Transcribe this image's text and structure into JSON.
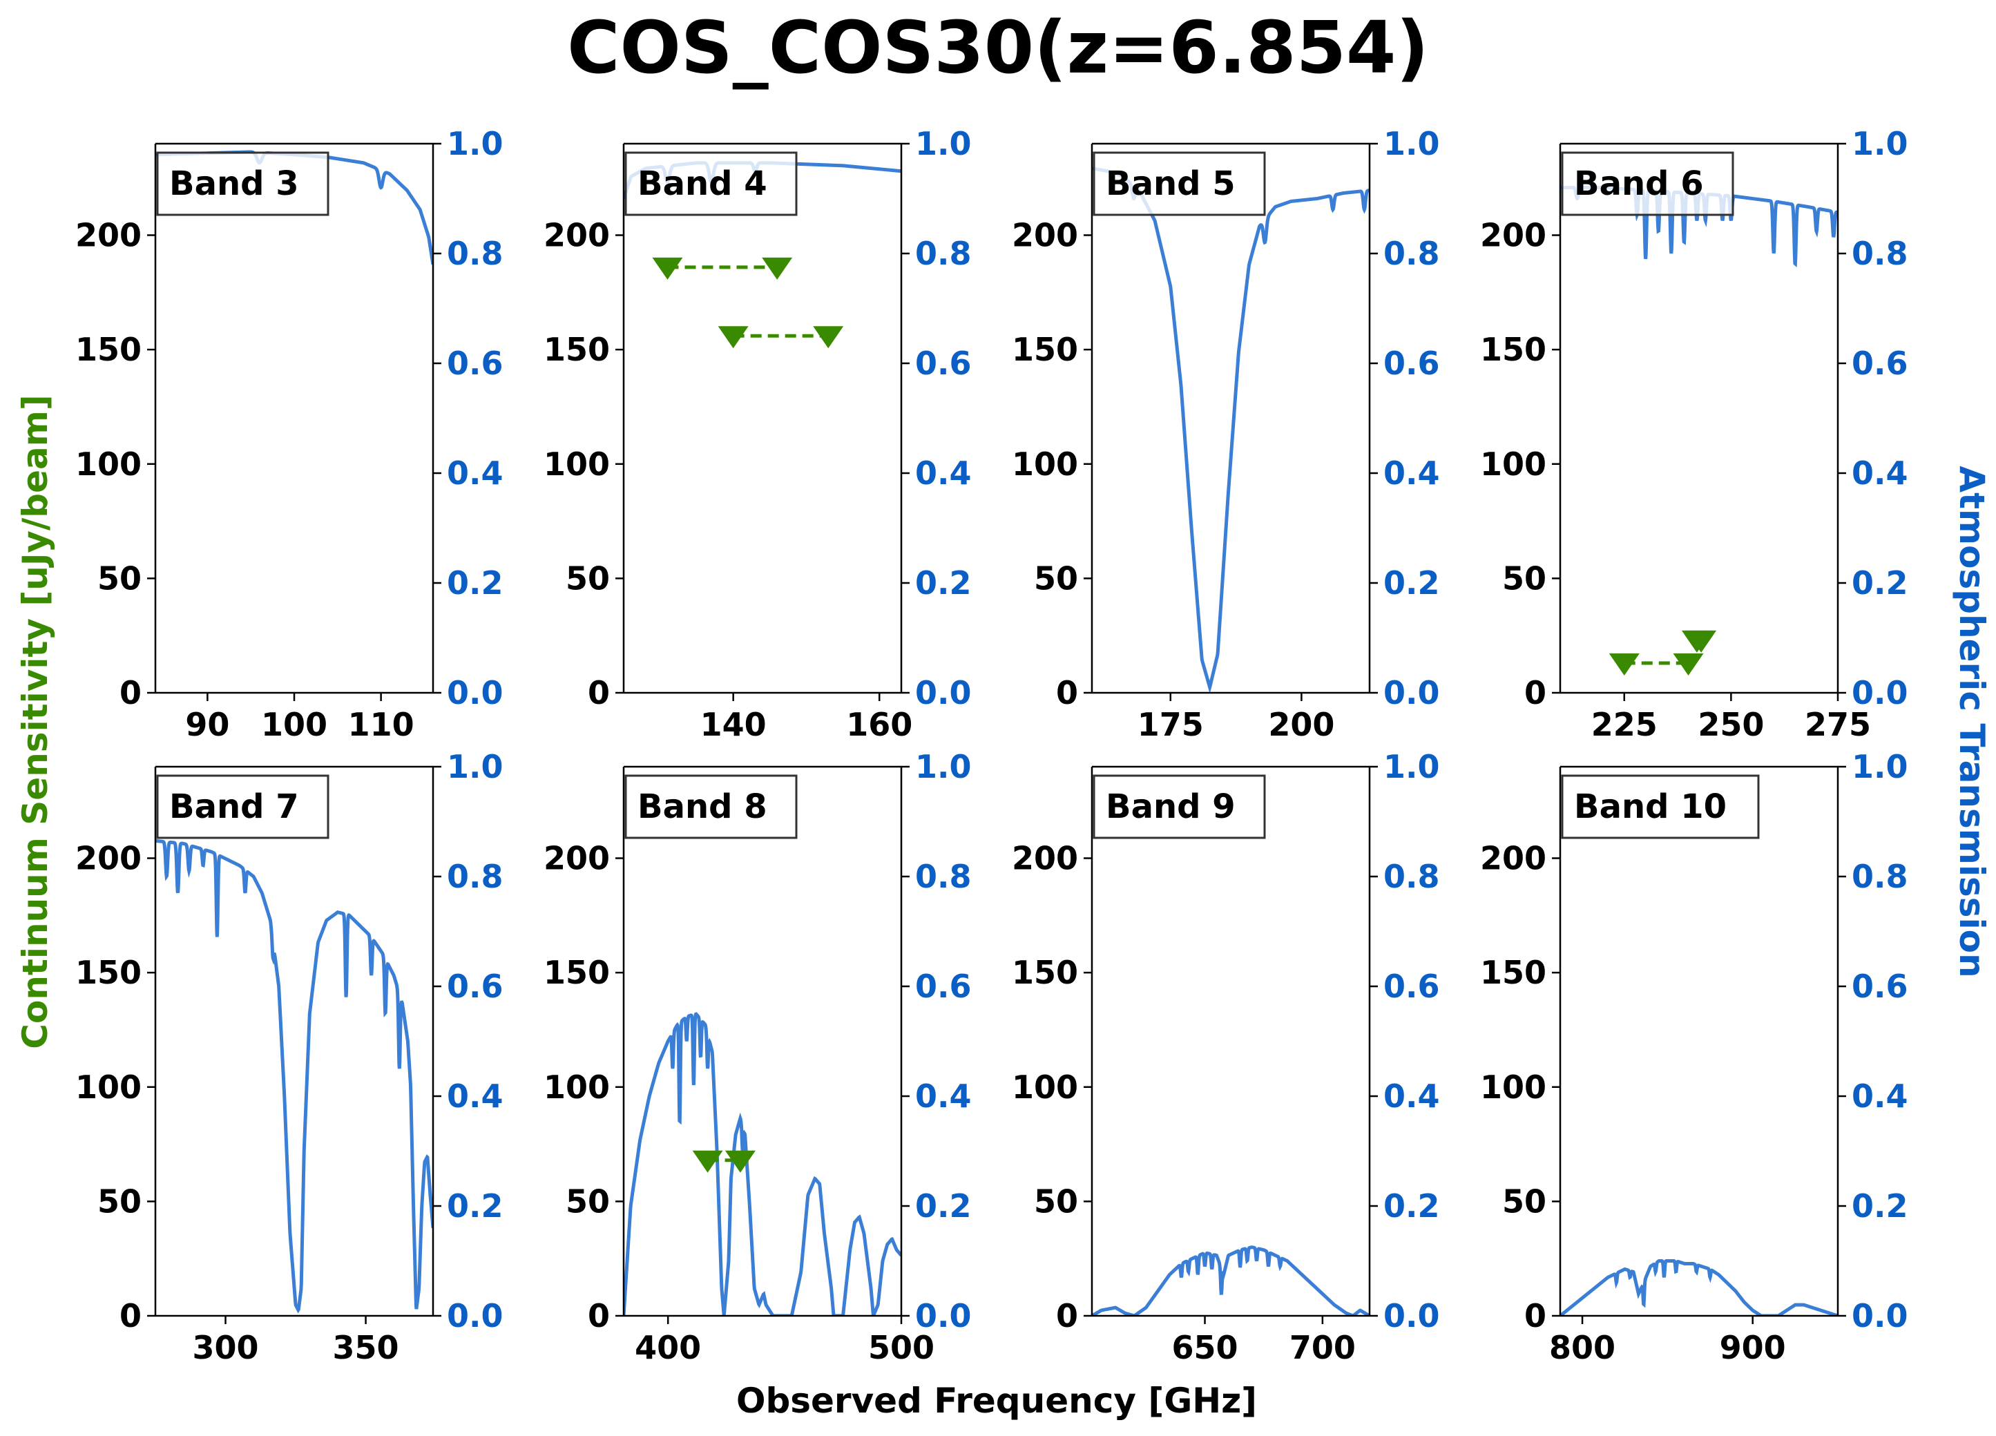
{
  "colors": {
    "sensitivity": "#3a8a00",
    "transmission_line": "#3a7fd5",
    "transmission_axis": "#0a5ec4",
    "text": "#000000"
  },
  "chart_data": {
    "type": "line",
    "title": "COS_COS30(z=6.854)",
    "xlabel": "Observed Frequency [GHz]",
    "ylabel_left": "Continuum Sensitivity [uJy/beam]",
    "ylabel_right": "Atmospheric Transmission",
    "left_ylim": [
      0,
      240
    ],
    "left_yticks": [
      0,
      50,
      100,
      150,
      200
    ],
    "right_ylim": [
      0,
      1.0
    ],
    "right_yticks": [
      "0.0",
      "0.2",
      "0.4",
      "0.6",
      "0.8",
      "1.0"
    ],
    "panels": [
      {
        "band": "Band 3",
        "xlim": [
          84,
          116
        ],
        "xticks": [
          90,
          100,
          110
        ],
        "transmission": [
          [
            84,
            0.98
          ],
          [
            95,
            0.985
          ],
          [
            100,
            0.98
          ],
          [
            104,
            0.975
          ],
          [
            108,
            0.965
          ],
          [
            111,
            0.945
          ],
          [
            113,
            0.915
          ],
          [
            114.5,
            0.88
          ],
          [
            115.5,
            0.83
          ],
          [
            116,
            0.78
          ]
        ],
        "dips": [
          [
            96,
            0.965,
            0.4
          ],
          [
            110,
            0.92,
            0.3
          ]
        ],
        "upper_limits": []
      },
      {
        "band": "Band 4",
        "xlim": [
          125,
          163
        ],
        "xticks": [
          140,
          160
        ],
        "transmission": [
          [
            125,
            0.9
          ],
          [
            126,
            0.94
          ],
          [
            128,
            0.955
          ],
          [
            135,
            0.965
          ],
          [
            145,
            0.965
          ],
          [
            155,
            0.96
          ],
          [
            163,
            0.95
          ]
        ],
        "dips": [
          [
            131,
            0.93,
            0.4
          ],
          [
            137,
            0.93,
            0.4
          ],
          [
            143,
            0.95,
            0.3
          ]
        ],
        "upper_limits": [
          [
            [
              131,
              186
            ],
            [
              146,
              186
            ]
          ],
          [
            [
              140,
              156
            ],
            [
              153,
              156
            ]
          ]
        ]
      },
      {
        "band": "Band 5",
        "xlim": [
          160,
          213
        ],
        "xticks": [
          175,
          200
        ],
        "transmission": [
          [
            160,
            0.955
          ],
          [
            163,
            0.95
          ],
          [
            166,
            0.94
          ],
          [
            169,
            0.915
          ],
          [
            172,
            0.86
          ],
          [
            175,
            0.74
          ],
          [
            177,
            0.56
          ],
          [
            179,
            0.3
          ],
          [
            181,
            0.06
          ],
          [
            182.5,
            0.01
          ],
          [
            184,
            0.07
          ],
          [
            186,
            0.36
          ],
          [
            188,
            0.62
          ],
          [
            190,
            0.78
          ],
          [
            192,
            0.85
          ],
          [
            195,
            0.885
          ],
          [
            198,
            0.895
          ],
          [
            203,
            0.9
          ],
          [
            208,
            0.91
          ],
          [
            213,
            0.915
          ]
        ],
        "dips": [
          [
            168,
            0.9,
            0.4
          ],
          [
            193,
            0.82,
            0.4
          ],
          [
            206,
            0.88,
            0.3
          ],
          [
            212,
            0.88,
            0.3
          ]
        ],
        "upper_limits": []
      },
      {
        "band": "Band 6",
        "xlim": [
          210,
          275
        ],
        "xticks": [
          225,
          250,
          275
        ],
        "transmission": [
          [
            210,
            0.92
          ],
          [
            220,
            0.92
          ],
          [
            230,
            0.915
          ],
          [
            240,
            0.91
          ],
          [
            250,
            0.905
          ],
          [
            260,
            0.895
          ],
          [
            268,
            0.885
          ],
          [
            275,
            0.875
          ]
        ],
        "dips": [
          [
            214,
            0.9,
            0.4
          ],
          [
            228,
            0.87,
            0.3
          ],
          [
            230,
            0.79,
            0.3
          ],
          [
            233,
            0.84,
            0.3
          ],
          [
            236,
            0.8,
            0.3
          ],
          [
            239,
            0.82,
            0.3
          ],
          [
            242,
            0.86,
            0.3
          ],
          [
            244,
            0.86,
            0.3
          ],
          [
            248,
            0.86,
            0.3
          ],
          [
            250,
            0.86,
            0.3
          ],
          [
            260,
            0.8,
            0.3
          ],
          [
            265,
            0.78,
            0.3
          ],
          [
            270,
            0.84,
            0.3
          ],
          [
            274,
            0.83,
            0.3
          ]
        ],
        "upper_limits": [
          [
            [
              225,
              13
            ],
            [
              240,
              13
            ]
          ],
          [
            [
              242,
              23
            ],
            [
              243,
              23
            ]
          ]
        ]
      },
      {
        "band": "Band 7",
        "xlim": [
          275,
          374
        ],
        "xticks": [
          300,
          350
        ],
        "transmission": [
          [
            275,
            0.865
          ],
          [
            285,
            0.86
          ],
          [
            295,
            0.845
          ],
          [
            305,
            0.82
          ],
          [
            310,
            0.8
          ],
          [
            313,
            0.77
          ],
          [
            316,
            0.72
          ],
          [
            319,
            0.6
          ],
          [
            321,
            0.4
          ],
          [
            323,
            0.15
          ],
          [
            325,
            0.02
          ],
          [
            326,
            0.01
          ],
          [
            327,
            0.05
          ],
          [
            328,
            0.3
          ],
          [
            330,
            0.55
          ],
          [
            333,
            0.68
          ],
          [
            336,
            0.72
          ],
          [
            340,
            0.735
          ],
          [
            344,
            0.73
          ],
          [
            348,
            0.71
          ],
          [
            352,
            0.69
          ],
          [
            356,
            0.66
          ],
          [
            360,
            0.62
          ],
          [
            363,
            0.57
          ],
          [
            365,
            0.5
          ],
          [
            366,
            0.42
          ],
          [
            367,
            0.2
          ],
          [
            368,
            0.01
          ],
          [
            369,
            0.05
          ],
          [
            370,
            0.2
          ],
          [
            371,
            0.28
          ],
          [
            372,
            0.29
          ],
          [
            373,
            0.22
          ],
          [
            374,
            0.16
          ]
        ],
        "dips": [
          [
            279,
            0.8,
            0.5
          ],
          [
            283,
            0.77,
            0.5
          ],
          [
            287,
            0.81,
            0.5
          ],
          [
            292,
            0.82,
            0.4
          ],
          [
            297,
            0.69,
            0.4
          ],
          [
            307,
            0.77,
            0.4
          ],
          [
            317,
            0.65,
            0.4
          ],
          [
            343,
            0.58,
            0.4
          ],
          [
            352,
            0.62,
            0.4
          ],
          [
            357,
            0.55,
            0.4
          ],
          [
            362,
            0.45,
            0.4
          ]
        ],
        "upper_limits": []
      },
      {
        "band": "Band 8",
        "xlim": [
          381,
          500
        ],
        "xticks": [
          400,
          500
        ],
        "transmission": [
          [
            381,
            0.0
          ],
          [
            384,
            0.2
          ],
          [
            388,
            0.32
          ],
          [
            392,
            0.4
          ],
          [
            396,
            0.46
          ],
          [
            400,
            0.5
          ],
          [
            404,
            0.53
          ],
          [
            408,
            0.545
          ],
          [
            412,
            0.55
          ],
          [
            416,
            0.53
          ],
          [
            419,
            0.48
          ],
          [
            421,
            0.3
          ],
          [
            423,
            0.05
          ],
          [
            424,
            0.0
          ],
          [
            426,
            0.1
          ],
          [
            427,
            0.25
          ],
          [
            429,
            0.33
          ],
          [
            431,
            0.36
          ],
          [
            433,
            0.33
          ],
          [
            435,
            0.2
          ],
          [
            437,
            0.05
          ],
          [
            439,
            0.02
          ],
          [
            441,
            0.04
          ],
          [
            442,
            0.02
          ],
          [
            445,
            0.0
          ],
          [
            453,
            0.0
          ],
          [
            457,
            0.08
          ],
          [
            460,
            0.22
          ],
          [
            463,
            0.25
          ],
          [
            465,
            0.24
          ],
          [
            467,
            0.15
          ],
          [
            470,
            0.05
          ],
          [
            471,
            0.0
          ],
          [
            475,
            0.0
          ],
          [
            478,
            0.12
          ],
          [
            480,
            0.17
          ],
          [
            482,
            0.18
          ],
          [
            484,
            0.15
          ],
          [
            487,
            0.05
          ],
          [
            488,
            0.0
          ],
          [
            490,
            0.02
          ],
          [
            492,
            0.1
          ],
          [
            494,
            0.13
          ],
          [
            496,
            0.14
          ],
          [
            498,
            0.12
          ],
          [
            500,
            0.11
          ]
        ],
        "dips": [
          [
            402,
            0.45,
            0.4
          ],
          [
            405,
            0.35,
            0.4
          ],
          [
            408,
            0.5,
            0.4
          ],
          [
            411,
            0.42,
            0.4
          ],
          [
            414,
            0.47,
            0.4
          ],
          [
            417,
            0.45,
            0.4
          ],
          [
            432,
            0.3,
            0.4
          ],
          [
            447,
            0.12,
            0.3
          ]
        ],
        "upper_limits": [
          [
            [
              417,
              68
            ],
            [
              431,
              68
            ]
          ]
        ]
      },
      {
        "band": "Band 9",
        "xlim": [
          602,
          720
        ],
        "xticks": [
          650,
          700
        ],
        "transmission": [
          [
            602,
            0.0
          ],
          [
            606,
            0.01
          ],
          [
            612,
            0.015
          ],
          [
            616,
            0.005
          ],
          [
            620,
            0.0
          ],
          [
            625,
            0.015
          ],
          [
            630,
            0.045
          ],
          [
            635,
            0.075
          ],
          [
            640,
            0.095
          ],
          [
            645,
            0.105
          ],
          [
            650,
            0.115
          ],
          [
            655,
            0.11
          ],
          [
            658,
            0.075
          ],
          [
            660,
            0.11
          ],
          [
            665,
            0.12
          ],
          [
            670,
            0.125
          ],
          [
            675,
            0.12
          ],
          [
            680,
            0.11
          ],
          [
            685,
            0.1
          ],
          [
            690,
            0.08
          ],
          [
            695,
            0.06
          ],
          [
            700,
            0.04
          ],
          [
            705,
            0.02
          ],
          [
            710,
            0.005
          ],
          [
            713,
            0.0
          ],
          [
            716,
            0.01
          ],
          [
            720,
            0.0
          ]
        ],
        "dips": [
          [
            640,
            0.07,
            0.4
          ],
          [
            643,
            0.08,
            0.4
          ],
          [
            647,
            0.075,
            0.4
          ],
          [
            650,
            0.09,
            0.4
          ],
          [
            653,
            0.085,
            0.4
          ],
          [
            657,
            0.04,
            0.4
          ],
          [
            665,
            0.09,
            0.4
          ],
          [
            668,
            0.1,
            0.4
          ],
          [
            672,
            0.1,
            0.4
          ],
          [
            677,
            0.09,
            0.4
          ],
          [
            682,
            0.09,
            0.4
          ]
        ],
        "upper_limits": []
      },
      {
        "band": "Band 10",
        "xlim": [
          787,
          950
        ],
        "xticks": [
          800,
          900
        ],
        "transmission": [
          [
            787,
            0.0
          ],
          [
            795,
            0.02
          ],
          [
            805,
            0.045
          ],
          [
            815,
            0.07
          ],
          [
            825,
            0.085
          ],
          [
            830,
            0.08
          ],
          [
            833,
            0.04
          ],
          [
            836,
            0.06
          ],
          [
            840,
            0.09
          ],
          [
            845,
            0.1
          ],
          [
            850,
            0.1
          ],
          [
            855,
            0.1
          ],
          [
            860,
            0.095
          ],
          [
            865,
            0.095
          ],
          [
            870,
            0.09
          ],
          [
            875,
            0.085
          ],
          [
            880,
            0.075
          ],
          [
            885,
            0.06
          ],
          [
            890,
            0.045
          ],
          [
            895,
            0.025
          ],
          [
            900,
            0.01
          ],
          [
            905,
            0.0
          ],
          [
            915,
            0.0
          ],
          [
            920,
            0.01
          ],
          [
            925,
            0.02
          ],
          [
            930,
            0.02
          ],
          [
            935,
            0.015
          ],
          [
            940,
            0.01
          ],
          [
            945,
            0.005
          ],
          [
            950,
            0.0
          ]
        ],
        "dips": [
          [
            820,
            0.06,
            0.5
          ],
          [
            828,
            0.07,
            0.5
          ],
          [
            836,
            0.02,
            0.5
          ],
          [
            843,
            0.08,
            0.5
          ],
          [
            848,
            0.07,
            0.5
          ],
          [
            855,
            0.08,
            0.5
          ],
          [
            867,
            0.08,
            0.5
          ],
          [
            875,
            0.07,
            0.5
          ]
        ],
        "upper_limits": []
      }
    ]
  }
}
